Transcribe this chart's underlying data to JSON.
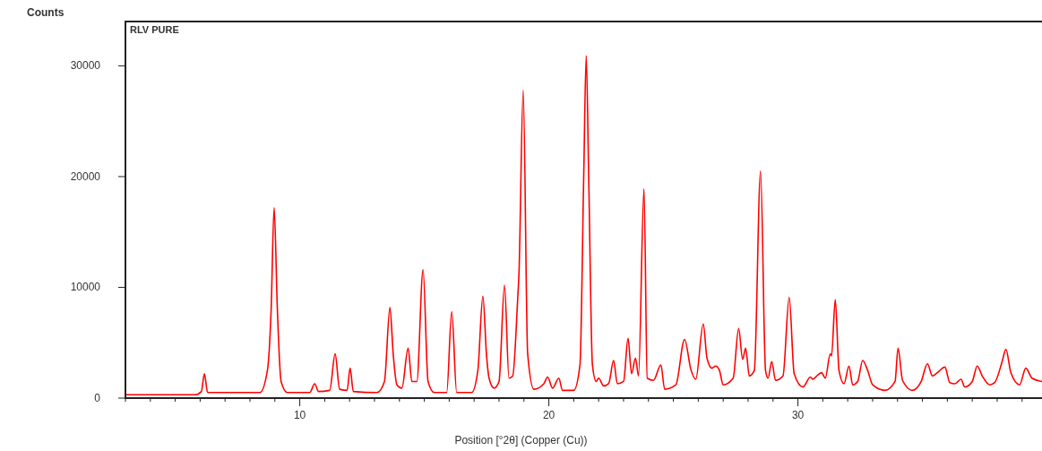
{
  "chart_data": {
    "type": "line",
    "ylabel": "Counts",
    "xlabel": "Position [°2θ] (Copper (Cu))",
    "annotations": [
      "RLV PURE"
    ],
    "xlim": [
      3,
      39.8
    ],
    "ylim": [
      0,
      34000
    ],
    "xticks": [
      {
        "value": 3,
        "label": null
      },
      {
        "value": 4,
        "label": null
      },
      {
        "value": 5,
        "label": null
      },
      {
        "value": 6,
        "label": null
      },
      {
        "value": 7,
        "label": null
      },
      {
        "value": 8,
        "label": null
      },
      {
        "value": 9,
        "label": null
      },
      10,
      {
        "value": 11,
        "label": null
      },
      {
        "value": 12,
        "label": null
      },
      {
        "value": 13,
        "label": null
      },
      {
        "value": 14,
        "label": null
      },
      {
        "value": 15,
        "label": null
      },
      {
        "value": 16,
        "label": null
      },
      {
        "value": 17,
        "label": null
      },
      {
        "value": 18,
        "label": null
      },
      {
        "value": 19,
        "label": null
      },
      20,
      {
        "value": 21,
        "label": null
      },
      {
        "value": 22,
        "label": null
      },
      {
        "value": 23,
        "label": null
      },
      {
        "value": 24,
        "label": null
      },
      {
        "value": 25,
        "label": null
      },
      {
        "value": 26,
        "label": null
      },
      {
        "value": 27,
        "label": null
      },
      {
        "value": 28,
        "label": null
      },
      {
        "value": 29,
        "label": null
      },
      30,
      {
        "value": 31,
        "label": null
      },
      {
        "value": 32,
        "label": null
      },
      {
        "value": 33,
        "label": null
      },
      {
        "value": 34,
        "label": null
      },
      {
        "value": 35,
        "label": null
      },
      {
        "value": 36,
        "label": null
      },
      {
        "value": 37,
        "label": null
      },
      {
        "value": 38,
        "label": null
      },
      {
        "value": 39,
        "label": null
      }
    ],
    "yticks": [
      0,
      10000,
      20000,
      30000
    ],
    "grid": false,
    "marker": "none",
    "line_style": "solid",
    "series": [
      {
        "color": "#ff0000",
        "x": [
          3.0,
          5.8,
          6.05,
          6.17,
          6.3,
          8.4,
          8.7,
          8.85,
          8.97,
          9.1,
          9.25,
          9.5,
          10.4,
          10.6,
          10.75,
          11.2,
          11.42,
          11.6,
          11.9,
          12.02,
          12.15,
          13.1,
          13.4,
          13.62,
          13.75,
          13.9,
          14.1,
          14.35,
          14.5,
          14.7,
          14.95,
          15.15,
          15.4,
          15.9,
          16.1,
          16.3,
          16.9,
          17.15,
          17.35,
          17.5,
          17.6,
          17.8,
          18.0,
          18.22,
          18.4,
          18.55,
          18.75,
          18.8,
          18.97,
          19.15,
          19.4,
          19.8,
          19.95,
          20.15,
          20.4,
          20.55,
          21.0,
          21.25,
          21.4,
          21.5,
          21.6,
          21.75,
          21.9,
          22.0,
          22.2,
          22.4,
          22.6,
          22.75,
          23.0,
          23.18,
          23.32,
          23.48,
          23.6,
          23.82,
          23.95,
          24.2,
          24.5,
          24.65,
          25.1,
          25.45,
          25.7,
          25.9,
          26.2,
          26.35,
          26.55,
          26.7,
          26.85,
          27.0,
          27.4,
          27.62,
          27.78,
          27.9,
          28.05,
          28.25,
          28.5,
          28.7,
          28.8,
          28.95,
          29.1,
          29.4,
          29.65,
          29.85,
          30.2,
          30.5,
          30.6,
          30.8,
          30.95,
          31.1,
          31.3,
          31.35,
          31.5,
          31.65,
          31.85,
          32.05,
          32.2,
          32.4,
          32.6,
          32.8,
          33.0,
          33.5,
          33.9,
          34.02,
          34.2,
          34.6,
          34.95,
          35.2,
          35.4,
          35.6,
          35.9,
          36.1,
          36.3,
          36.55,
          36.7,
          37.0,
          37.2,
          37.4,
          37.7,
          37.9,
          38.2,
          38.35,
          38.55,
          38.9,
          39.15,
          39.4,
          39.8
        ],
        "values": [
          300,
          300,
          600,
          2200,
          500,
          500,
          2500,
          8000,
          17200,
          8000,
          1500,
          500,
          500,
          1300,
          600,
          700,
          4000,
          800,
          700,
          2700,
          600,
          500,
          1500,
          8200,
          4000,
          1200,
          900,
          4500,
          1500,
          1500,
          11600,
          1500,
          500,
          500,
          7800,
          500,
          500,
          2500,
          9200,
          3800,
          1800,
          900,
          1500,
          10200,
          1800,
          2000,
          9000,
          11200,
          27800,
          4000,
          800,
          1300,
          1900,
          900,
          1800,
          700,
          700,
          3000,
          20000,
          30900,
          20000,
          3000,
          1500,
          1800,
          1100,
          1300,
          3400,
          1300,
          1500,
          5400,
          2200,
          3600,
          2000,
          18900,
          1800,
          1600,
          3000,
          800,
          1200,
          5300,
          2600,
          1700,
          6700,
          3600,
          2700,
          2900,
          2500,
          1200,
          1800,
          6300,
          3500,
          4500,
          2000,
          2500,
          20500,
          2500,
          1800,
          3300,
          1600,
          2000,
          9100,
          2200,
          1000,
          1900,
          1700,
          2100,
          2300,
          1800,
          4000,
          3800,
          8900,
          2500,
          1300,
          2900,
          1200,
          1500,
          3400,
          2500,
          1200,
          700,
          1500,
          4500,
          1600,
          700,
          1500,
          3100,
          2000,
          2300,
          2800,
          1400,
          1300,
          1700,
          1000,
          1500,
          2900,
          2000,
          1200,
          1400,
          3300,
          4400,
          2300,
          1200,
          2700,
          1800,
          1500
        ]
      }
    ]
  }
}
